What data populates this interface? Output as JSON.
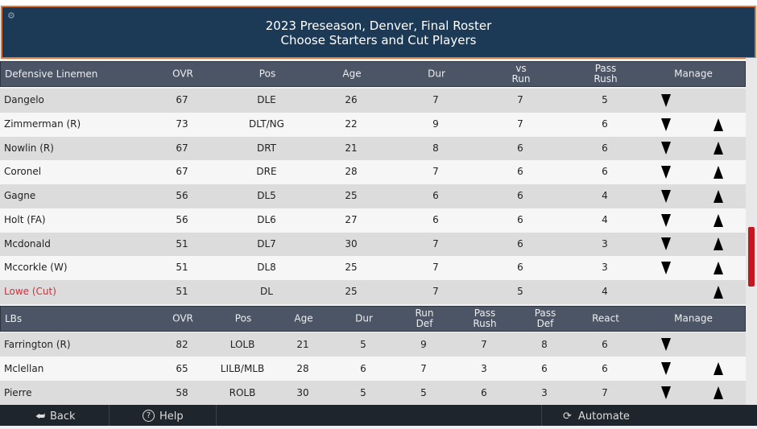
{
  "header": {
    "title_lines": [
      "2023 Preseason, Denver, Final Roster",
      "Choose Starters and Cut Players"
    ]
  },
  "tables": [
    {
      "columns": [
        [
          "Defensive Linemen"
        ],
        [
          "OVR"
        ],
        [
          "Pos"
        ],
        [
          "Age"
        ],
        [
          "Dur"
        ],
        [
          "vs",
          "Run"
        ],
        [
          "Pass",
          "Rush"
        ],
        [
          "Manage"
        ]
      ],
      "rows": [
        [
          "Dangelo",
          67,
          "DLE",
          26,
          7,
          7,
          5
        ],
        [
          "Zimmerman (R)",
          73,
          "DLT/NG",
          22,
          9,
          7,
          6
        ],
        [
          "Nowlin (R)",
          67,
          "DRT",
          21,
          8,
          6,
          6
        ],
        [
          "Coronel",
          67,
          "DRE",
          28,
          7,
          6,
          6
        ],
        [
          "Gagne",
          56,
          "DL5",
          25,
          6,
          6,
          4
        ],
        [
          "Holt (FA)",
          56,
          "DL6",
          27,
          6,
          6,
          4
        ],
        [
          "Mcdonald",
          51,
          "DL7",
          30,
          7,
          6,
          3
        ],
        [
          "Mccorkle (W)",
          51,
          "DL8",
          25,
          7,
          6,
          3
        ],
        [
          "Lowe (Cut)",
          51,
          "DL",
          25,
          7,
          5,
          4
        ]
      ]
    },
    {
      "columns": [
        [
          "LBs"
        ],
        [
          "OVR"
        ],
        [
          "Pos"
        ],
        [
          "Age"
        ],
        [
          "Dur"
        ],
        [
          "Run",
          "Def"
        ],
        [
          "Pass",
          "Rush"
        ],
        [
          "Pass",
          "Def"
        ],
        [
          "React"
        ],
        [
          "Manage"
        ]
      ],
      "rows": [
        [
          "Farrington (R)",
          82,
          "LOLB",
          21,
          5,
          9,
          7,
          8,
          6
        ],
        [
          "Mclellan",
          65,
          "LILB/MLB",
          28,
          6,
          7,
          3,
          6,
          6
        ],
        [
          "Pierre",
          58,
          "ROLB",
          30,
          5,
          5,
          6,
          3,
          7
        ]
      ]
    }
  ],
  "footer": {
    "buttons": [
      "Back",
      "Help",
      "Automate"
    ]
  }
}
